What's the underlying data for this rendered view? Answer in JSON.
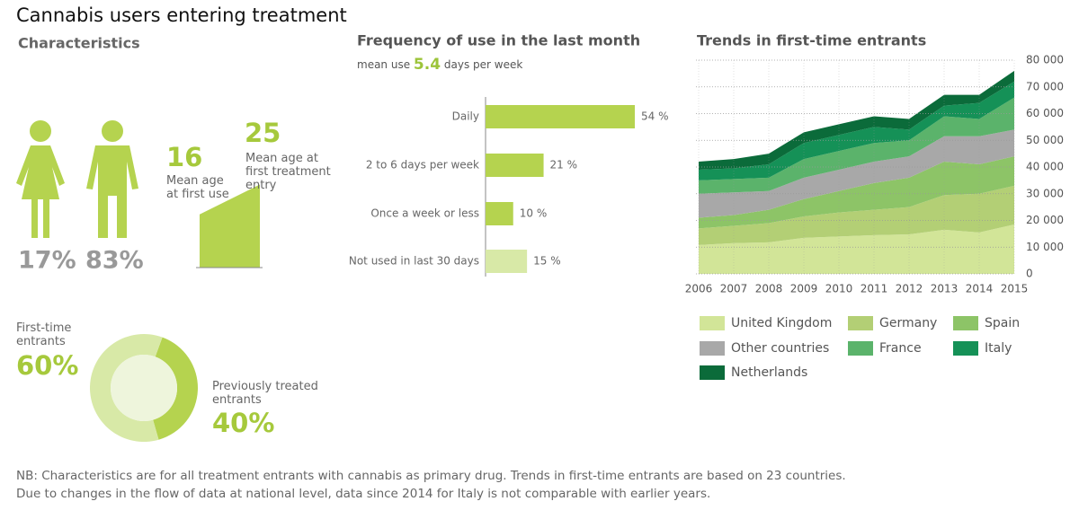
{
  "title": "Cannabis users entering treatment",
  "notes": [
    "NB: Characteristics are for all treatment entrants with cannabis as primary drug. Trends in first-time entrants are based on 23 countries.",
    "Due to changes in the flow of data at national level, data since 2014 for Italy is not comparable with earlier years."
  ],
  "chart_data": [
    {
      "type": "pictogram",
      "title": "Characteristics",
      "categories": [
        null,
        null
      ],
      "values": [
        17,
        83
      ],
      "value_labels": [
        "17%",
        "83%"
      ],
      "color": "#b5d34f"
    },
    {
      "type": "slope",
      "categories": [
        "Mean age at first use",
        "Mean age at first treatment entry"
      ],
      "values": [
        16,
        25
      ],
      "color": "#b5d34f"
    },
    {
      "type": "donut",
      "categories": [
        "First-time entrants",
        "Previously treated entrants"
      ],
      "values": [
        60,
        40
      ],
      "value_labels": [
        "60%",
        "40%"
      ],
      "colors": [
        "#d8e9a7",
        "#b5d34f"
      ]
    },
    {
      "type": "bar",
      "title": "Frequency of use in the last month",
      "subtitle_before": "mean use",
      "mean_use": 5.4,
      "subtitle_after": "days per week",
      "categories": [
        "Daily",
        "2 to 6 days per week",
        "Once a week or less",
        "Not used in last 30 days"
      ],
      "values": [
        54,
        21,
        10,
        15
      ],
      "value_labels": [
        "54 %",
        "21 %",
        "10 %",
        "15 %"
      ],
      "colors": [
        "#b5d34f",
        "#b5d34f",
        "#b5d34f",
        "#d8e9a7"
      ]
    },
    {
      "type": "area",
      "title": "Trends in first-time entrants",
      "stacked": true,
      "x": [
        2006,
        2007,
        2008,
        2009,
        2010,
        2011,
        2012,
        2013,
        2014,
        2015
      ],
      "xlim": [
        2006,
        2015
      ],
      "ylim": [
        0,
        80000
      ],
      "yticks": [
        0,
        {
          "value": 10000,
          "label": "10 000"
        },
        {
          "value": 20000,
          "label": "20 000"
        },
        {
          "value": 30000,
          "label": "30 000"
        },
        {
          "value": 40000,
          "label": "40 000"
        },
        {
          "value": 50000,
          "label": "50 000"
        },
        {
          "value": 60000,
          "label": "60 000"
        },
        {
          "value": 70000,
          "label": "70 000"
        },
        {
          "value": 80000,
          "label": "80 000"
        }
      ],
      "grid": true,
      "series": [
        {
          "name": "United Kingdom",
          "color": "#d2e598",
          "values": [
            10800,
            11500,
            11800,
            13500,
            14000,
            14500,
            14800,
            16500,
            15500,
            18500
          ]
        },
        {
          "name": "Germany",
          "color": "#b3cf75",
          "values": [
            6200,
            6500,
            7200,
            8000,
            9000,
            9500,
            10200,
            13000,
            14500,
            14500
          ]
        },
        {
          "name": "Spain",
          "color": "#8dc467",
          "values": [
            4000,
            4000,
            5000,
            6500,
            8000,
            10000,
            11000,
            12500,
            11000,
            11000
          ]
        },
        {
          "name": "Other countries",
          "color": "#a8a8a8",
          "values": [
            9000,
            8500,
            7000,
            8000,
            8000,
            8000,
            8000,
            9500,
            10500,
            10000
          ]
        },
        {
          "name": "France",
          "color": "#5bb36b",
          "values": [
            5000,
            5000,
            5000,
            7000,
            7000,
            7000,
            6000,
            7500,
            6500,
            12000
          ]
        },
        {
          "name": "Italy",
          "color": "#159157",
          "values": [
            4000,
            4000,
            5000,
            6000,
            6000,
            6000,
            4000,
            4000,
            6000,
            6000
          ]
        },
        {
          "name": "Netherlands",
          "color": "#0b6b3a",
          "values": [
            3000,
            3500,
            4000,
            4000,
            4000,
            4000,
            4000,
            4000,
            3000,
            4000
          ]
        }
      ]
    }
  ]
}
